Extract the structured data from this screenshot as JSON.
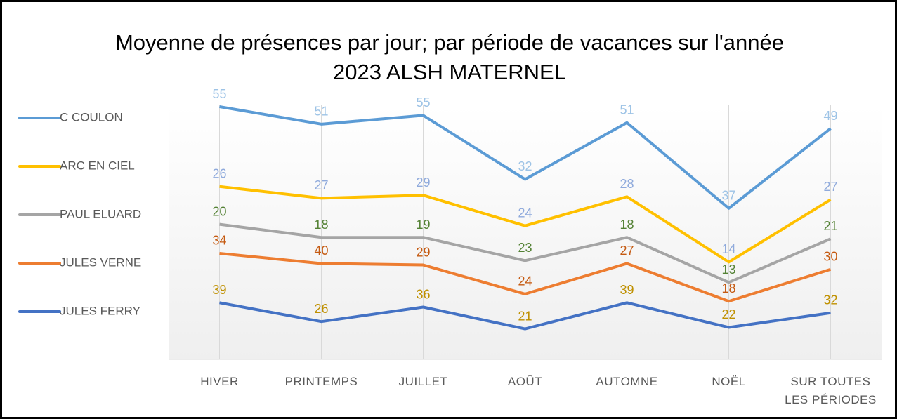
{
  "chart_data": {
    "type": "line",
    "stacked": true,
    "title": "Moyenne de présences par jour; par période de vacances sur l'année 2023 ALSH MATERNEL",
    "categories": [
      "HIVER",
      "PRINTEMPS",
      "JUILLET",
      "AOÛT",
      "AUTOMNE",
      "NOËL",
      "SUR TOUTES LES PÉRIODES"
    ],
    "series": [
      {
        "name": "C COULON",
        "color": "#5b9bd5",
        "label_color": "#9dc3e6",
        "values": [
          55,
          51,
          55,
          32,
          51,
          37,
          49
        ]
      },
      {
        "name": "ARC EN CIEL",
        "color": "#ffc000",
        "label_color": "#8faadc",
        "values": [
          26,
          27,
          29,
          24,
          28,
          14,
          27
        ]
      },
      {
        "name": "PAUL ELUARD",
        "color": "#a5a5a5",
        "label_color": "#548235",
        "values": [
          20,
          18,
          19,
          23,
          18,
          13,
          21
        ]
      },
      {
        "name": "JULES VERNE",
        "color": "#ed7d31",
        "label_color": "#c55a11",
        "values": [
          34,
          40,
          29,
          24,
          27,
          18,
          30
        ]
      },
      {
        "name": "JULES FERRY",
        "color": "#4472c4",
        "label_color": "#bf9000",
        "values": [
          39,
          26,
          36,
          21,
          39,
          22,
          32
        ]
      }
    ],
    "legend": "left",
    "grid": "vertical"
  }
}
